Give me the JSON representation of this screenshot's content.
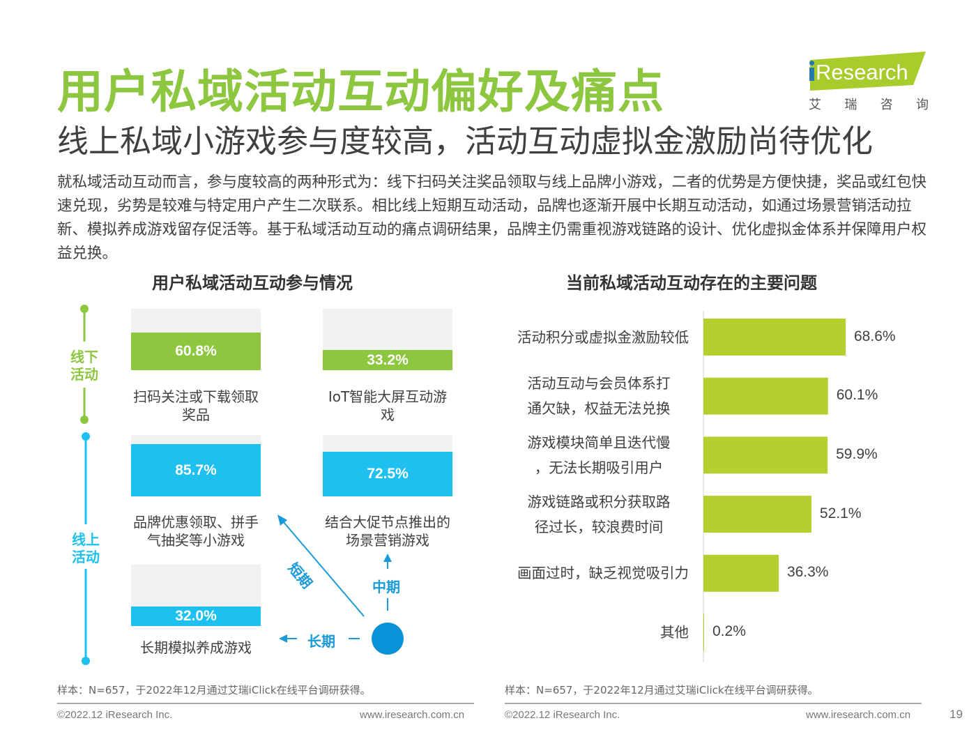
{
  "title": "用户私域活动互动偏好及痛点",
  "subtitle": "线上私域小游戏参与度较高，活动互动虚拟金激励尚待优化",
  "logo": {
    "text": "Research",
    "letter_i": "i",
    "cn": [
      "艾",
      "瑞",
      "咨",
      "询"
    ]
  },
  "intro": "就私域活动互动而言，参与度较高的两种形式为：线下扫码关注奖品领取与线上品牌小游戏，二者的优势是方便快捷，奖品或红包快速兑现，劣势是较难与特定用户产生二次联系。相比线上短期互动活动，品牌也逐渐开展中长期互动活动，如通过场景营销活动拉新、模拟养成游戏留存促活等。基于私域活动互动的痛点调研结果，品牌主仍需重视游戏链路的设计、优化虚拟金体系并保障用户权益兑换。",
  "left_chart": {
    "title": "用户私域活动互动参与情况",
    "stages": {
      "offline": "线下活动",
      "online": "线上活动"
    },
    "cards": [
      {
        "value": 60.8,
        "text": "60.8%",
        "label": "扫码关注或下载领取奖品",
        "stage": "offline"
      },
      {
        "value": 33.2,
        "text": "33.2%",
        "label": "IoT智能大屏互动游戏",
        "stage": "offline"
      },
      {
        "value": 85.7,
        "text": "85.7%",
        "label": "品牌优惠领取、拼手气抽奖等小游戏",
        "stage": "online"
      },
      {
        "value": 72.5,
        "text": "72.5%",
        "label": "结合大促节点推出的场景营销游戏",
        "stage": "online"
      },
      {
        "value": 32.0,
        "text": "32.0%",
        "label": "长期模拟养成游戏",
        "stage": "online"
      }
    ],
    "arrows": {
      "short": "短期",
      "mid": "中期",
      "long": "长期"
    },
    "colors": {
      "offline": "#8dc63f",
      "online": "#1ec0f0",
      "arrow": "#1a9ad6"
    }
  },
  "chart_data": {
    "type": "bar",
    "orientation": "horizontal",
    "title": "当前私域活动互动存在的主要问题",
    "categories": [
      "活动积分或虚拟金激励较低",
      "活动互动与会员体系打通欠缺，权益无法兑换",
      "游戏模块简单且迭代慢，无法长期吸引用户",
      "游戏链路或积分获取路径过长，较浪费时间",
      "画面过时，缺乏视觉吸引力",
      "其他"
    ],
    "values": [
      68.6,
      60.1,
      59.9,
      52.1,
      36.3,
      0.2
    ],
    "value_labels": [
      "68.6%",
      "60.1%",
      "59.9%",
      "52.1%",
      "36.3%",
      "0.2%"
    ],
    "bar_color": "#b5cf2e",
    "xlim": [
      0,
      100
    ],
    "grid": false,
    "legend": "none"
  },
  "notes": {
    "left": "样本：N=657，于2022年12月通过艾瑞iClick在线平台调研获得。",
    "right": "样本：N=657，于2022年12月通过艾瑞iClick在线平台调研获得。"
  },
  "footer": {
    "copyright_left": "©2022.12 iResearch Inc.",
    "url_left": "www.iresearch.com.cn",
    "copyright_right": "©2022.12 iResearch Inc.",
    "url_right": "www.iresearch.com.cn",
    "page": "19"
  }
}
